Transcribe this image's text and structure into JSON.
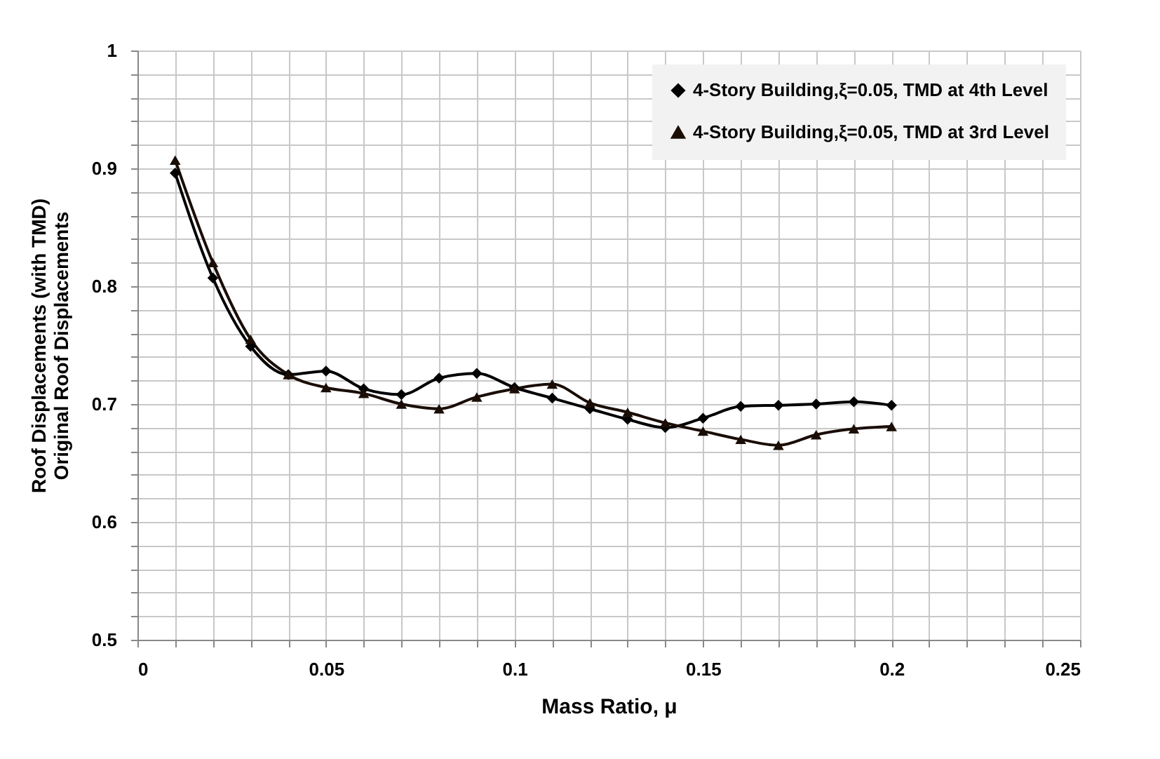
{
  "chart_data": {
    "type": "line",
    "xlabel": "Mass Ratio, μ",
    "ylabel": "Roof Displacements (with TMD)\nOriginal Roof Displacements",
    "x": [
      0.01,
      0.02,
      0.03,
      0.04,
      0.05,
      0.06,
      0.07,
      0.08,
      0.09,
      0.1,
      0.11,
      0.12,
      0.13,
      0.14,
      0.15,
      0.16,
      0.17,
      0.18,
      0.19,
      0.2
    ],
    "series": [
      {
        "name": "4-Story Building,ξ=0.05, TMD at 4th Level",
        "color": "#000000",
        "marker": "diamond",
        "values": [
          0.896,
          0.807,
          0.749,
          0.725,
          0.728,
          0.713,
          0.708,
          0.722,
          0.726,
          0.714,
          0.705,
          0.696,
          0.687,
          0.68,
          0.688,
          0.698,
          0.699,
          0.7,
          0.702,
          0.699
        ]
      },
      {
        "name": "4-Story Building,ξ=0.05, TMD at 3rd Level",
        "color": "#1a0d05",
        "marker": "triangle",
        "values": [
          0.907,
          0.82,
          0.755,
          0.725,
          0.714,
          0.709,
          0.7,
          0.696,
          0.706,
          0.713,
          0.717,
          0.701,
          0.693,
          0.684,
          0.677,
          0.67,
          0.665,
          0.674,
          0.679,
          0.681
        ]
      }
    ],
    "xlim": [
      0,
      0.25
    ],
    "xticks": [
      0,
      {
        "value": 0.01,
        "label": null
      },
      {
        "value": 0.02,
        "label": null
      },
      {
        "value": 0.03,
        "label": null
      },
      {
        "value": 0.04,
        "label": null
      },
      0.05,
      {
        "value": 0.06,
        "label": null
      },
      {
        "value": 0.07,
        "label": null
      },
      {
        "value": 0.08,
        "label": null
      },
      {
        "value": 0.09,
        "label": null
      },
      0.1,
      {
        "value": 0.11,
        "label": null
      },
      {
        "value": 0.12,
        "label": null
      },
      {
        "value": 0.13,
        "label": null
      },
      {
        "value": 0.14,
        "label": null
      },
      0.15,
      {
        "value": 0.16,
        "label": null
      },
      {
        "value": 0.17,
        "label": null
      },
      {
        "value": 0.18,
        "label": null
      },
      {
        "value": 0.19,
        "label": null
      },
      0.2,
      {
        "value": 0.21,
        "label": null
      },
      {
        "value": 0.22,
        "label": null
      },
      {
        "value": 0.23,
        "label": null
      },
      {
        "value": 0.24,
        "label": null
      },
      0.25
    ],
    "ylim": [
      0.5,
      1
    ],
    "yticks": [
      0.5,
      {
        "value": 0.52,
        "label": null
      },
      {
        "value": 0.54,
        "label": null
      },
      {
        "value": 0.56,
        "label": null
      },
      {
        "value": 0.58,
        "label": null
      },
      0.6,
      {
        "value": 0.62,
        "label": null
      },
      {
        "value": 0.64,
        "label": null
      },
      {
        "value": 0.66,
        "label": null
      },
      {
        "value": 0.68,
        "label": null
      },
      0.7,
      {
        "value": 0.72,
        "label": null
      },
      {
        "value": 0.74,
        "label": null
      },
      {
        "value": 0.76,
        "label": null
      },
      {
        "value": 0.78,
        "label": null
      },
      0.8,
      {
        "value": 0.82,
        "label": null
      },
      {
        "value": 0.84,
        "label": null
      },
      {
        "value": 0.86,
        "label": null
      },
      {
        "value": 0.88,
        "label": null
      },
      0.9,
      {
        "value": 0.92,
        "label": null
      },
      {
        "value": 0.94,
        "label": null
      },
      {
        "value": 0.96,
        "label": null
      },
      {
        "value": 0.98,
        "label": null
      },
      1
    ],
    "grid": true,
    "legend": "top right",
    "line_style": "solid"
  }
}
